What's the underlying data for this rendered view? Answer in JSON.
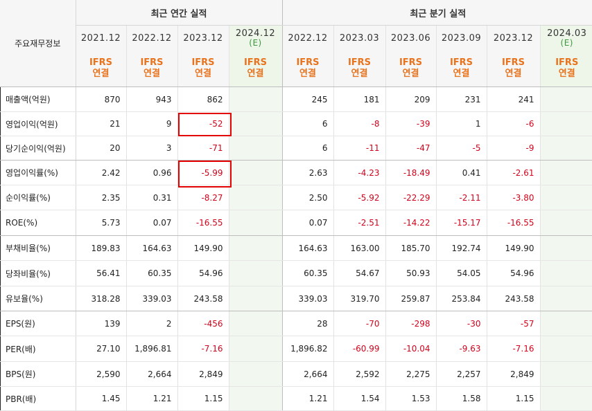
{
  "header": {
    "row_label": "주요재무정보",
    "annual_group": "최근 연간 실적",
    "quarter_group": "최근 분기 실적"
  },
  "columns": [
    {
      "period": "2021.12",
      "estimate": "",
      "basis": "IFRS",
      "consol": "연결"
    },
    {
      "period": "2022.12",
      "estimate": "",
      "basis": "IFRS",
      "consol": "연결"
    },
    {
      "period": "2023.12",
      "estimate": "",
      "basis": "IFRS",
      "consol": "연결"
    },
    {
      "period": "2024.12",
      "estimate": "(E)",
      "basis": "IFRS",
      "consol": "연결"
    },
    {
      "period": "2022.12",
      "estimate": "",
      "basis": "IFRS",
      "consol": "연결"
    },
    {
      "period": "2023.03",
      "estimate": "",
      "basis": "IFRS",
      "consol": "연결"
    },
    {
      "period": "2023.06",
      "estimate": "",
      "basis": "IFRS",
      "consol": "연결"
    },
    {
      "period": "2023.09",
      "estimate": "",
      "basis": "IFRS",
      "consol": "연결"
    },
    {
      "period": "2023.12",
      "estimate": "",
      "basis": "IFRS",
      "consol": "연결"
    },
    {
      "period": "2024.03",
      "estimate": "(E)",
      "basis": "IFRS",
      "consol": "연결"
    }
  ],
  "rows": [
    {
      "label": "매출액(억원)",
      "values": [
        "870",
        "943",
        "862",
        "",
        "245",
        "181",
        "209",
        "231",
        "241",
        ""
      ]
    },
    {
      "label": "영업이익(억원)",
      "values": [
        "21",
        "9",
        "-52",
        "",
        "6",
        "-8",
        "-39",
        "1",
        "-6",
        ""
      ]
    },
    {
      "label": "당기순이익(억원)",
      "values": [
        "20",
        "3",
        "-71",
        "",
        "6",
        "-11",
        "-47",
        "-5",
        "-9",
        ""
      ]
    },
    {
      "label": "영업이익률(%)",
      "values": [
        "2.42",
        "0.96",
        "-5.99",
        "",
        "2.63",
        "-4.23",
        "-18.49",
        "0.41",
        "-2.61",
        ""
      ]
    },
    {
      "label": "순이익률(%)",
      "values": [
        "2.35",
        "0.31",
        "-8.27",
        "",
        "2.50",
        "-5.92",
        "-22.29",
        "-2.11",
        "-3.80",
        ""
      ]
    },
    {
      "label": "ROE(%)",
      "values": [
        "5.73",
        "0.07",
        "-16.55",
        "",
        "0.07",
        "-2.51",
        "-14.22",
        "-15.17",
        "-16.55",
        ""
      ]
    },
    {
      "label": "부채비율(%)",
      "values": [
        "189.83",
        "164.63",
        "149.90",
        "",
        "164.63",
        "163.00",
        "185.70",
        "192.74",
        "149.90",
        ""
      ]
    },
    {
      "label": "당좌비율(%)",
      "values": [
        "56.41",
        "60.35",
        "54.96",
        "",
        "60.35",
        "54.67",
        "50.93",
        "54.05",
        "54.96",
        ""
      ]
    },
    {
      "label": "유보율(%)",
      "values": [
        "318.28",
        "339.03",
        "243.58",
        "",
        "339.03",
        "319.70",
        "259.87",
        "253.84",
        "243.58",
        ""
      ]
    },
    {
      "label": "EPS(원)",
      "values": [
        "139",
        "2",
        "-456",
        "",
        "28",
        "-70",
        "-298",
        "-30",
        "-57",
        ""
      ]
    },
    {
      "label": "PER(배)",
      "values": [
        "27.10",
        "1,896.81",
        "-7.16",
        "",
        "1,896.82",
        "-60.99",
        "-10.04",
        "-9.63",
        "-7.16",
        ""
      ]
    },
    {
      "label": "BPS(원)",
      "values": [
        "2,590",
        "2,664",
        "2,849",
        "",
        "2,664",
        "2,592",
        "2,275",
        "2,257",
        "2,849",
        ""
      ]
    },
    {
      "label": "PBR(배)",
      "values": [
        "1.45",
        "1.21",
        "1.15",
        "",
        "1.21",
        "1.54",
        "1.53",
        "1.58",
        "1.15",
        ""
      ]
    }
  ],
  "colors": {
    "negative": "#d0021b",
    "ifrs": "#e8731c",
    "estimate": "#3a9a3a",
    "highlight": "#e20000"
  }
}
